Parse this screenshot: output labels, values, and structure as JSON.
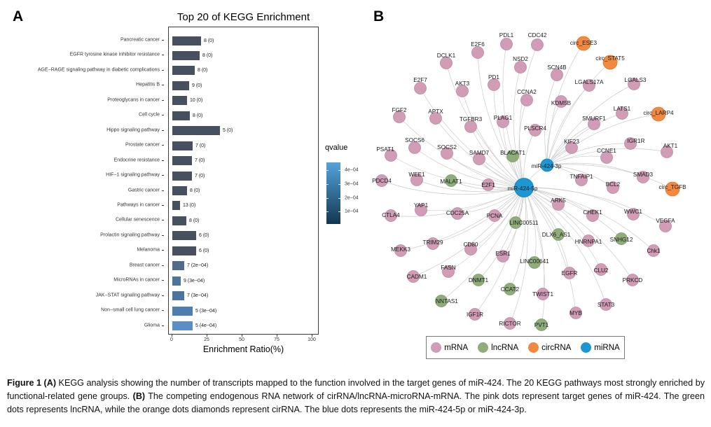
{
  "panel_a": {
    "label": "A",
    "chart_data": {
      "type": "bar",
      "orientation": "horizontal",
      "title": "Top 20 of KEGG Enrichment",
      "xlabel": "Enrichment Ratio(%)",
      "xlim": [
        0,
        100
      ],
      "xticks": [
        0,
        25,
        50,
        75,
        100
      ],
      "bars": [
        {
          "pathway": "Pancreatic cancer",
          "ratio_pct": 20.5,
          "annotation": "8 (0)",
          "color": "#47505e"
        },
        {
          "pathway": "EGFR tyrosine kinase inhibitor resistance",
          "ratio_pct": 19.5,
          "annotation": "8 (0)",
          "color": "#47505e"
        },
        {
          "pathway": "AGE−RAGE signaling pathway in diabetic complications",
          "ratio_pct": 16,
          "annotation": "8 (0)",
          "color": "#47505e"
        },
        {
          "pathway": "Hepatitis B",
          "ratio_pct": 12,
          "annotation": "9 (0)",
          "color": "#47505e"
        },
        {
          "pathway": "Proteoglycans in cancer",
          "ratio_pct": 10.5,
          "annotation": "10 (0)",
          "color": "#47505e"
        },
        {
          "pathway": "Cell cycle",
          "ratio_pct": 12.5,
          "annotation": "8 (0)",
          "color": "#47505e"
        },
        {
          "pathway": "Hippo signaling pathway",
          "ratio_pct": 34,
          "annotation": "5 (0)",
          "color": "#47505e"
        },
        {
          "pathway": "Prostate cancer",
          "ratio_pct": 14.5,
          "annotation": "7 (0)",
          "color": "#47505e"
        },
        {
          "pathway": "Endocrine resistance",
          "ratio_pct": 14,
          "annotation": "7 (0)",
          "color": "#47505e"
        },
        {
          "pathway": "HIF−1 signaling pathway",
          "ratio_pct": 14,
          "annotation": "7 (0)",
          "color": "#47505e"
        },
        {
          "pathway": "Gastric cancer",
          "ratio_pct": 10.5,
          "annotation": "8 (0)",
          "color": "#47505e"
        },
        {
          "pathway": "Pathways in cancer",
          "ratio_pct": 5.5,
          "annotation": "13 (0)",
          "color": "#47505e"
        },
        {
          "pathway": "Cellular senescence",
          "ratio_pct": 10,
          "annotation": "8 (0)",
          "color": "#47505e"
        },
        {
          "pathway": "Prolactin signaling pathway",
          "ratio_pct": 17,
          "annotation": "6 (0)",
          "color": "#47505e"
        },
        {
          "pathway": "Melanoma",
          "ratio_pct": 17,
          "annotation": "6 (0)",
          "color": "#47505e"
        },
        {
          "pathway": "Breast cancer",
          "ratio_pct": 8.5,
          "annotation": "7 (2e−04)",
          "color": "#506b8c"
        },
        {
          "pathway": "MicroRNAs in cancer",
          "ratio_pct": 6,
          "annotation": "9 (3e−04)",
          "color": "#4d739f"
        },
        {
          "pathway": "JAK−STAT signaling pathway",
          "ratio_pct": 8.5,
          "annotation": "7 (3e−04)",
          "color": "#4d739f"
        },
        {
          "pathway": "Non−small cell lung cancer",
          "ratio_pct": 14.5,
          "annotation": "5 (3e−04)",
          "color": "#4f7dad"
        },
        {
          "pathway": "Glioma",
          "ratio_pct": 14.5,
          "annotation": "5 (4e−04)",
          "color": "#5b8ec6"
        }
      ],
      "legend": {
        "title": "qvalue",
        "ticks": [
          "4e−04",
          "3e−04",
          "2e−04",
          "1e−04"
        ],
        "gradient_top": "#54a3dd",
        "gradient_bottom": "#12374f"
      }
    }
  },
  "panel_b": {
    "label": "B",
    "network": {
      "type_styles": {
        "mRNA": {
          "fill": "#d09cb6",
          "stroke": "#bc87a4",
          "r": 8.5
        },
        "lncRNA": {
          "fill": "#8fac7a",
          "stroke": "#7c9b68",
          "r": 8.5
        },
        "circRNA": {
          "fill": "#f18a40",
          "stroke": "#dd7428",
          "r": 10
        },
        "miRNA": {
          "fill": "#1e96d2",
          "stroke": "#137fb5",
          "r": 9
        }
      },
      "edge_color": "#cbcbcb",
      "node_format": [
        "label",
        "type",
        "x",
        "y",
        "hub",
        "label_dx",
        "label_dy"
      ],
      "nodes": [
        [
          "miR-424-5p",
          "miRNA",
          218,
          250,
          null,
          -2,
          1
        ],
        [
          "miR-424-3p",
          "miRNA",
          251,
          218,
          "5p",
          -1,
          1
        ],
        [
          "PDL1",
          "mRNA",
          193,
          45,
          "5p",
          0,
          -13
        ],
        [
          "CDC42",
          "mRNA",
          237,
          46,
          "5p",
          0,
          -14
        ],
        [
          "circ_ESE3",
          "circRNA",
          303,
          44,
          "3p",
          0,
          -1
        ],
        [
          "E2F6",
          "mRNA",
          152,
          57,
          "5p",
          0,
          -12
        ],
        [
          "circ_STAT5",
          "circRNA",
          341,
          71,
          "3p",
          0,
          -6
        ],
        [
          "DCLK1",
          "mRNA",
          107,
          72,
          "5p",
          0,
          -11
        ],
        [
          "NSD2",
          "mRNA",
          213,
          78,
          "5p",
          0,
          -12
        ],
        [
          "SCN4B",
          "mRNA",
          265,
          89,
          "3p",
          0,
          -11
        ],
        [
          "E2F7",
          "mRNA",
          70,
          108,
          "5p",
          0,
          -12
        ],
        [
          "AKT3",
          "mRNA",
          130,
          112,
          "5p",
          0,
          -11
        ],
        [
          "PD1",
          "mRNA",
          175,
          103,
          "5p",
          0,
          -11
        ],
        [
          "CCNA2",
          "mRNA",
          222,
          125,
          "5p",
          0,
          -12
        ],
        [
          "LGALS17A",
          "mRNA",
          311,
          104,
          "3p",
          0,
          -5
        ],
        [
          "LGALS3",
          "mRNA",
          375,
          102,
          "3p",
          2,
          -6
        ],
        [
          "KDM5B",
          "mRNA",
          271,
          127,
          "3p",
          0,
          2
        ],
        [
          "LATS1",
          "mRNA",
          358,
          144,
          "3p",
          0,
          -7
        ],
        [
          "circ_LARP4",
          "circRNA",
          410,
          145,
          "3p",
          0,
          -2
        ],
        [
          "SMURF1",
          "mRNA",
          318,
          159,
          "3p",
          0,
          -8
        ],
        [
          "FGF2",
          "mRNA",
          40,
          149,
          "5p",
          0,
          -10
        ],
        [
          "APTX",
          "mRNA",
          92,
          151,
          "5p",
          0,
          -10
        ],
        [
          "TGFBR3",
          "mRNA",
          142,
          163,
          "5p",
          0,
          -11
        ],
        [
          "PLAG1",
          "mRNA",
          188,
          156,
          "5p",
          0,
          -6
        ],
        [
          "PLSCR4",
          "mRNA",
          234,
          168,
          "5p",
          0,
          -3
        ],
        [
          "KIF23",
          "mRNA",
          286,
          193,
          "3p",
          0,
          -9
        ],
        [
          "CCNE1",
          "mRNA",
          336,
          207,
          "3p",
          0,
          -10
        ],
        [
          "IGR1R",
          "mRNA",
          370,
          187,
          "3p",
          8,
          -4
        ],
        [
          "AKT1",
          "mRNA",
          422,
          199,
          "3p",
          5,
          -9
        ],
        [
          "SOCS6",
          "mRNA",
          62,
          193,
          "5p",
          0,
          -11
        ],
        [
          "SOCS2",
          "mRNA",
          108,
          201,
          "5p",
          0,
          -9
        ],
        [
          "SAMD7",
          "mRNA",
          154,
          209,
          "5p",
          0,
          -9
        ],
        [
          "BLACAT1",
          "lncRNA",
          202,
          205,
          "5p",
          0,
          -5
        ],
        [
          "PSAT1",
          "mRNA",
          28,
          204,
          "5p",
          -8,
          -9
        ],
        [
          "WEE1",
          "mRNA",
          65,
          239,
          "5p",
          0,
          -8
        ],
        [
          "MALAT1",
          "lncRNA",
          114,
          240,
          "5p",
          0,
          1
        ],
        [
          "E2F1",
          "mRNA",
          167,
          246,
          "5p",
          0,
          0
        ],
        [
          "TNFAIP1",
          "mRNA",
          300,
          239,
          "3p",
          0,
          -5
        ],
        [
          "SMAD3",
          "mRNA",
          388,
          235,
          "3p",
          0,
          -4
        ],
        [
          "BCL2",
          "mRNA",
          345,
          250,
          "3p",
          0,
          -5
        ],
        [
          "circ_TGFB",
          "circRNA",
          430,
          252,
          "3p",
          0,
          -3
        ],
        [
          "PDCD4",
          "mRNA",
          15,
          240,
          "5p",
          0,
          0
        ],
        [
          "YAP1",
          "mRNA",
          71,
          282,
          "5p",
          0,
          -7
        ],
        [
          "CDC25A",
          "mRNA",
          123,
          287,
          "5p",
          0,
          -1
        ],
        [
          "PCNA",
          "mRNA",
          176,
          290,
          "5p",
          0,
          0
        ],
        [
          "CTLA4",
          "mRNA",
          28,
          290,
          "5p",
          0,
          -1
        ],
        [
          "LINC00511",
          "lncRNA",
          206,
          300,
          "5p",
          12,
          0
        ],
        [
          "ARK5",
          "mRNA",
          267,
          274,
          "5p",
          0,
          -6
        ],
        [
          "DLX6_AS1",
          "lncRNA",
          267,
          317,
          "5p",
          -3,
          0
        ],
        [
          "HNRNPA1",
          "mRNA",
          310,
          326,
          "5p",
          0,
          1
        ],
        [
          "SNHG12",
          "lncRNA",
          357,
          323,
          "5p",
          0,
          1
        ],
        [
          "Chk1",
          "mRNA",
          403,
          340,
          "5p",
          0,
          0
        ],
        [
          "CHEK1",
          "mRNA",
          316,
          290,
          "5p",
          0,
          -5
        ],
        [
          "WWC1",
          "mRNA",
          374,
          288,
          "5p",
          0,
          -4
        ],
        [
          "VEGFA",
          "mRNA",
          420,
          305,
          "5p",
          0,
          -8
        ],
        [
          "MEKK3",
          "mRNA",
          42,
          340,
          "5p",
          0,
          -2
        ],
        [
          "TRIM29",
          "mRNA",
          88,
          330,
          "5p",
          0,
          -2
        ],
        [
          "CD80",
          "mRNA",
          142,
          338,
          "5p",
          0,
          -7
        ],
        [
          "ESR1",
          "mRNA",
          188,
          348,
          "5p",
          0,
          -4
        ],
        [
          "LINC00641",
          "lncRNA",
          233,
          357,
          "5p",
          0,
          -2
        ],
        [
          "FASN",
          "mRNA",
          110,
          370,
          "5p",
          0,
          -6
        ],
        [
          "CADM1",
          "mRNA",
          60,
          377,
          "5p",
          5,
          0
        ],
        [
          "DNMT1",
          "lncRNA",
          153,
          382,
          "5p",
          0,
          0
        ],
        [
          "CCAT2",
          "lncRNA",
          198,
          395,
          "5p",
          0,
          0
        ],
        [
          "TWIST1",
          "mRNA",
          245,
          402,
          "5p",
          0,
          0
        ],
        [
          "NNTAS1",
          "lncRNA",
          100,
          412,
          "5p",
          8,
          0
        ],
        [
          "IGF1R",
          "mRNA",
          148,
          431,
          "5p",
          0,
          0
        ],
        [
          "RICTOR",
          "mRNA",
          198,
          444,
          "5p",
          0,
          0
        ],
        [
          "PVT1",
          "lncRNA",
          243,
          446,
          "5p",
          0,
          0
        ],
        [
          "MYB",
          "mRNA",
          292,
          429,
          "5p",
          0,
          0
        ],
        [
          "EGFR",
          "mRNA",
          283,
          372,
          "5p",
          0,
          0
        ],
        [
          "CLU2",
          "mRNA",
          328,
          367,
          "5p",
          0,
          1
        ],
        [
          "PRKCD",
          "mRNA",
          373,
          382,
          "5p",
          0,
          0
        ],
        [
          "STAT3",
          "mRNA",
          335,
          417,
          "5p",
          0,
          0
        ]
      ],
      "legend": [
        {
          "label": "mRNA",
          "color": "#d09cb6"
        },
        {
          "label": "lncRNA",
          "color": "#8fac7a"
        },
        {
          "label": "circRNA",
          "color": "#f18a40"
        },
        {
          "label": "miRNA",
          "color": "#1e96d2"
        }
      ]
    }
  },
  "caption": {
    "segments": [
      {
        "text": "Figure 1 ",
        "bold": true
      },
      {
        "text": "(A)",
        "bold": true
      },
      {
        "text": " KEGG analysis showing the number of transcripts mapped to the function involved in the target genes of miR-424. The 20 KEGG pathways most strongly enriched by functional-related gene groups. ",
        "bold": false
      },
      {
        "text": "(B)",
        "bold": true
      },
      {
        "text": " The competing endogenous RNA network of cirRNA/lncRNA-microRNA-mRNA. The pink dots represent target genes of miR-424. The green dots represents lncRNA, while the orange dots diamonds represent cirRNA. The blue dots represents the miR-424-5p or miR-424-3p.",
        "bold": false
      }
    ]
  }
}
